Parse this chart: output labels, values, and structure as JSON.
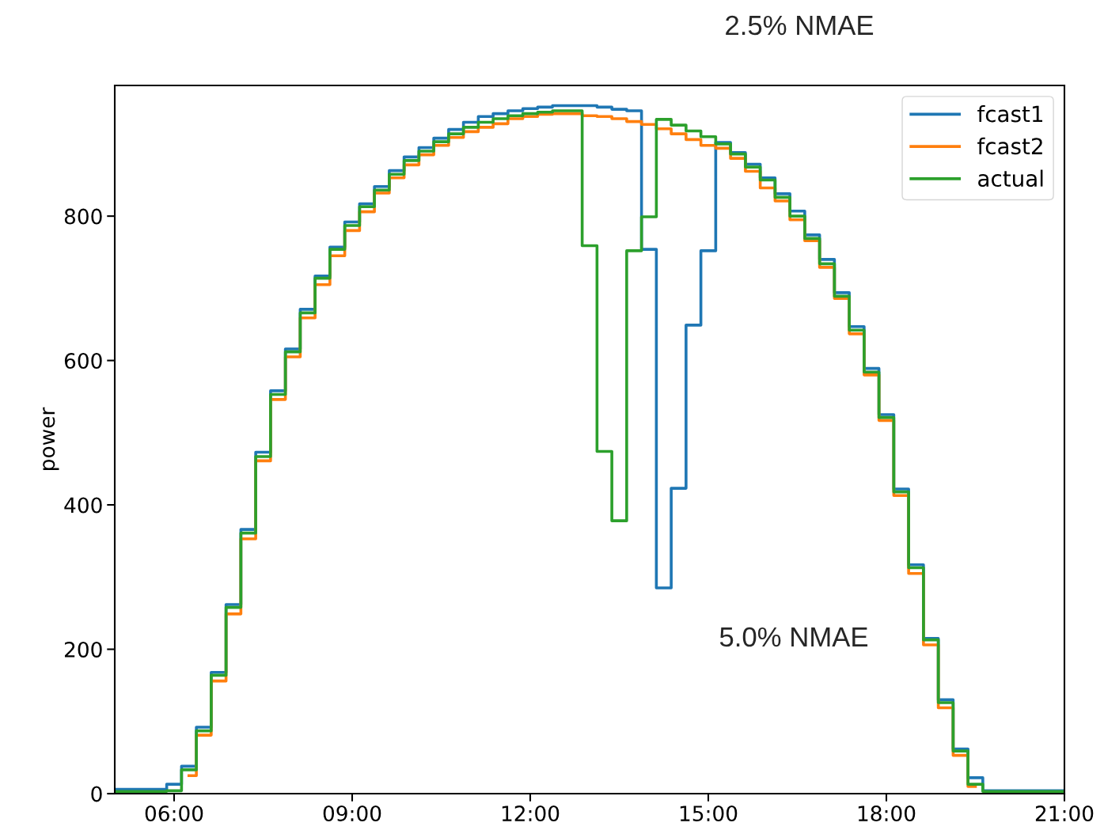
{
  "chart_data": {
    "type": "step",
    "ylabel": "power",
    "annotations": [
      "2.5% NMAE",
      "5.0% NMAE"
    ],
    "x": [
      5.0,
      5.25,
      5.5,
      5.75,
      6.0,
      6.25,
      6.5,
      6.75,
      7.0,
      7.25,
      7.5,
      7.75,
      8.0,
      8.25,
      8.5,
      8.75,
      9.0,
      9.25,
      9.5,
      9.75,
      10.0,
      10.25,
      10.5,
      10.75,
      11.0,
      11.25,
      11.5,
      11.75,
      12.0,
      12.25,
      12.5,
      12.75,
      13.0,
      13.25,
      13.5,
      13.75,
      14.0,
      14.25,
      14.5,
      14.75,
      15.0,
      15.25,
      15.5,
      15.75,
      16.0,
      16.25,
      16.5,
      16.75,
      17.0,
      17.25,
      17.5,
      17.75,
      18.0,
      18.25,
      18.5,
      18.75,
      19.0,
      19.25,
      19.5,
      19.75,
      20.0,
      20.25,
      20.5,
      20.75,
      21.0
    ],
    "series": [
      {
        "name": "fcast1",
        "color": "#1f77b4",
        "values": [
          6,
          6,
          6,
          6,
          13,
          38,
          92,
          168,
          262,
          366,
          473,
          558,
          616,
          671,
          717,
          757,
          792,
          817,
          841,
          863,
          882,
          895,
          908,
          920,
          930,
          938,
          942,
          946,
          949,
          951,
          953,
          953,
          953,
          951,
          948,
          946,
          754,
          285,
          423,
          649,
          752,
          902,
          888,
          872,
          853,
          831,
          807,
          774,
          740,
          694,
          647,
          589,
          525,
          422,
          317,
          215,
          130,
          62,
          22,
          4,
          4,
          4,
          4,
          4,
          4
        ]
      },
      {
        "name": "fcast2",
        "color": "#ff7f0e",
        "x": [
          6.25,
          6.5,
          6.75,
          7.0,
          7.25,
          7.5,
          7.75,
          8.0,
          8.25,
          8.5,
          8.75,
          9.0,
          9.25,
          9.5,
          9.75,
          10.0,
          10.25,
          10.5,
          10.75,
          11.0,
          11.25,
          11.5,
          11.75,
          12.0,
          12.25,
          12.5,
          12.75,
          13.0,
          13.25,
          13.5,
          13.75,
          14.0,
          14.25,
          14.5,
          14.75,
          15.0,
          15.25,
          15.5,
          15.75,
          16.0,
          16.25,
          16.5,
          16.75,
          17.0,
          17.25,
          17.5,
          17.75,
          18.0,
          18.25,
          18.5,
          18.75,
          19.0,
          19.25,
          19.5
        ],
        "values": [
          25,
          81,
          156,
          249,
          353,
          461,
          546,
          605,
          659,
          705,
          745,
          780,
          806,
          832,
          853,
          871,
          885,
          898,
          909,
          917,
          923,
          928,
          935,
          938,
          941,
          942,
          942,
          939,
          938,
          935,
          931,
          927,
          921,
          914,
          906,
          898,
          894,
          880,
          862,
          839,
          821,
          795,
          766,
          729,
          686,
          637,
          580,
          517,
          413,
          305,
          206,
          119,
          53,
          10
        ]
      },
      {
        "name": "actual",
        "color": "#2ca02c",
        "values": [
          3,
          3,
          3,
          3,
          4,
          33,
          87,
          164,
          258,
          361,
          467,
          553,
          612,
          666,
          714,
          754,
          787,
          813,
          836,
          858,
          877,
          890,
          903,
          914,
          923,
          930,
          935,
          939,
          942,
          944,
          946,
          946,
          759,
          474,
          378,
          752,
          799,
          934,
          926,
          918,
          910,
          900,
          886,
          868,
          850,
          826,
          800,
          769,
          734,
          689,
          642,
          584,
          521,
          418,
          313,
          213,
          126,
          59,
          13,
          3,
          3,
          3,
          3,
          3,
          3
        ]
      }
    ],
    "xlim": [
      5,
      21
    ],
    "xticks": [
      {
        "value": 6,
        "label": "06:00"
      },
      {
        "value": 9,
        "label": "09:00"
      },
      {
        "value": 12,
        "label": "12:00"
      },
      {
        "value": 15,
        "label": "15:00"
      },
      {
        "value": 18,
        "label": "18:00"
      },
      {
        "value": 21,
        "label": "21:00"
      }
    ],
    "ylim": [
      0,
      981
    ],
    "yticks": [
      0,
      200,
      400,
      600,
      800
    ],
    "legend": "top right",
    "grid": false,
    "line_style": "solid",
    "marker": "none"
  }
}
